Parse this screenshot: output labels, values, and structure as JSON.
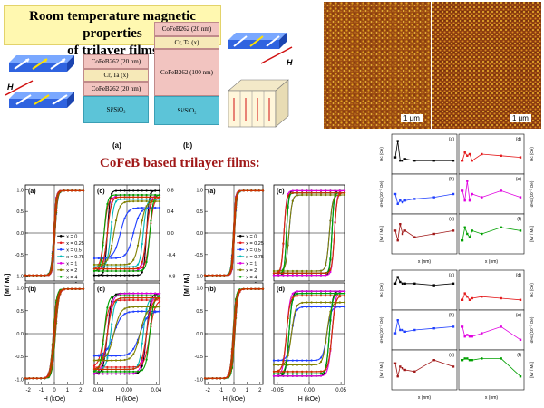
{
  "header": {
    "title_line1": "Room temperature magnetic properties",
    "title_line2": "of trilayer films"
  },
  "stack_a": {
    "layers": [
      "CoFeB262 (20 nm)",
      "Cr, Ta (x)",
      "CoFeB262 (20 nm)",
      "Si/SiO₂"
    ],
    "label": "(a)"
  },
  "stack_b": {
    "layers": [
      "CoFeB262 (20 nm)",
      "Cr, Ta (x)",
      "CoFeB262 (100 nm)",
      "Si/SiO₂"
    ],
    "label": "(b)"
  },
  "field_label": "H",
  "afm": {
    "scale_left": "1 μm",
    "scale_right": "1 μm"
  },
  "subtitle": "CoFeB based trilayer films:",
  "loops": {
    "ylabel": "[M / Mₛ]",
    "xlabel": "H (kOe)",
    "panels_left": [
      "(a)",
      "(b)",
      "(c)",
      "(d)"
    ],
    "panels_right": [
      "(a)",
      "(b)",
      "(c)",
      "(d)"
    ],
    "ticks_wide": [
      "-2",
      "-1",
      "0",
      "1",
      "2"
    ],
    "ticks_narrow_left": [
      "-0.04",
      "0.00",
      "0.04"
    ],
    "ticks_narrow_right": [
      "-0.05",
      "0.00",
      "0.05"
    ],
    "y_ticks": [
      "1.0",
      "0.5",
      "0.0",
      "-0.5",
      "-1.0"
    ],
    "y_ticks_c": [
      "0.8",
      "0.4",
      "0.0",
      "-0.4",
      "-0.8"
    ],
    "legend": [
      "x = 0",
      "x = 0.25",
      "x = 0.5",
      "x = 0.75",
      "x = 1",
      "x = 2",
      "x = 4",
      "x = 6"
    ],
    "colors": [
      "#000000",
      "#e41a1c",
      "#1f3fff",
      "#00b8b8",
      "#e000e0",
      "#808000",
      "#00a000",
      "#cc3300"
    ]
  },
  "small_plots": {
    "xlabel": "x (nm)",
    "labels": [
      "(a)",
      "(b)",
      "(c)",
      "(d)",
      "(e)",
      "(f)"
    ],
    "ylabels_left": [
      "Hc (Oe)",
      "σHc (10⁻³ Oe)",
      "[Mr / Ms]"
    ],
    "ylabels_right": [
      "Hc (Oe)",
      "σHc (10⁻³ Oe)",
      "[Mr / Ms]"
    ]
  },
  "chart_data": [
    {
      "type": "line",
      "panel": "left group (a), (b)",
      "xlabel": "H (kOe)",
      "ylabel": "[M / Ms]",
      "xlim": [
        -2.5,
        2.5
      ],
      "ylim": [
        -1.1,
        1.1
      ],
      "series_names": [
        "x = 0",
        "x = 0.25",
        "x = 0.5",
        "x = 0.75",
        "x = 1",
        "x = 2",
        "x = 4",
        "x = 6"
      ]
    },
    {
      "type": "line",
      "panel": "left group (c), (d)",
      "xlabel": "H (kOe)",
      "xlim": [
        -0.05,
        0.05
      ],
      "ylim": [
        -1.1,
        1.1
      ]
    },
    {
      "type": "line",
      "panel": "right group (c), (d)",
      "xlabel": "H (kOe)",
      "xlim": [
        -0.07,
        0.07
      ],
      "ylim": [
        -1.1,
        1.1
      ]
    }
  ]
}
